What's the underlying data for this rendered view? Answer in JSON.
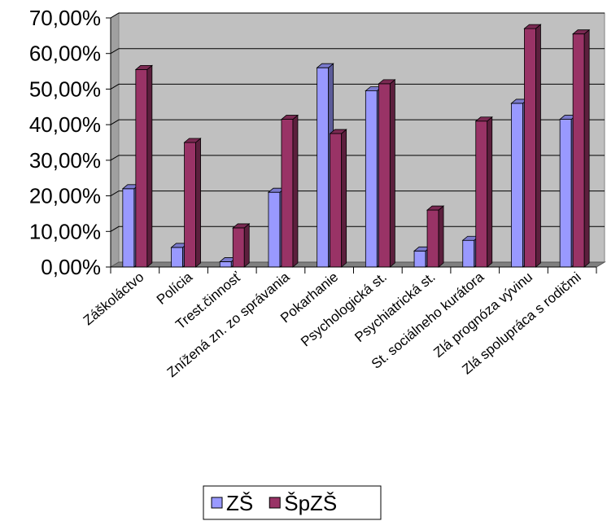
{
  "chart_data": {
    "type": "bar",
    "title": "",
    "xlabel": "",
    "ylabel": "",
    "ylim": [
      0,
      70
    ],
    "y_ticks": [
      "0,00%",
      "10,00%",
      "20,00%",
      "30,00%",
      "40,00%",
      "50,00%",
      "60,00%",
      "70,00%"
    ],
    "categories": [
      "Záškoláctvo",
      "Polícia",
      "Trest.činnosť",
      "Znížená zn. zo správania",
      "Pokarhanie",
      "Psychologická st.",
      "Psychiatrická st.",
      "St. sociálneho kurátora",
      "Zlá prognóza vývinu",
      "Zlá spolupráca s rodičmi"
    ],
    "series": [
      {
        "name": "ZŠ",
        "color": "#9999ff",
        "values": [
          22,
          5.5,
          1.5,
          21,
          56,
          49.5,
          4.5,
          7.5,
          46,
          41.5
        ]
      },
      {
        "name": "ŠpZŠ",
        "color": "#993366",
        "values": [
          55.5,
          35,
          11,
          41.5,
          37.5,
          51.5,
          16,
          41,
          67,
          65.5
        ]
      }
    ],
    "grid": true,
    "three_d": true,
    "wall_color": "#c0c0c0",
    "legend": "bottom-center"
  }
}
